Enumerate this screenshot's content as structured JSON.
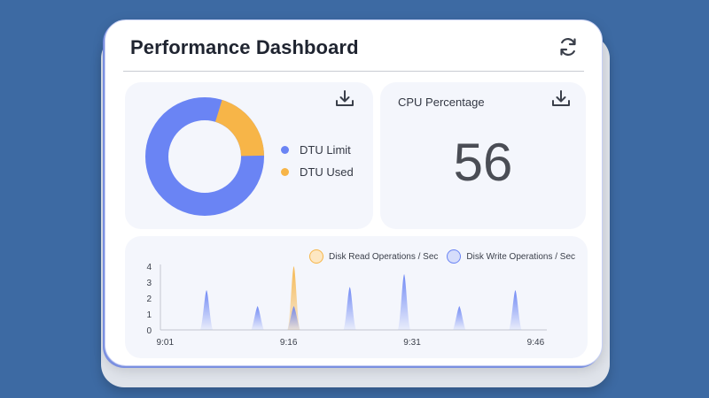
{
  "dashboard": {
    "title": "Performance Dashboard",
    "refresh_icon": "refresh-icon"
  },
  "dtu": {
    "legend": [
      {
        "label": "DTU Limit",
        "color": "#6a84f4"
      },
      {
        "label": "DTU Used",
        "color": "#f7b548"
      }
    ],
    "limit_fraction": 0.8,
    "used_fraction": 0.2,
    "download_icon": "download-icon"
  },
  "cpu": {
    "label": "CPU Percentage",
    "value": "56",
    "download_icon": "download-icon"
  },
  "chart_data": {
    "type": "area",
    "title": "",
    "xlabel": "",
    "ylabel": "",
    "ylim": [
      0,
      4
    ],
    "yticks": [
      "4",
      "3",
      "2",
      "1",
      "0"
    ],
    "xticks": [
      "9:01",
      "9:16",
      "9:31",
      "9:46"
    ],
    "series": [
      {
        "name": "Disk Read Operations / Sec",
        "color": "#f7b548",
        "peaks": [
          {
            "t": 16.2,
            "v": 4.0
          }
        ]
      },
      {
        "name": "Disk Write Operations / Sec",
        "color": "#6a84f4",
        "peaks": [
          {
            "t": 5.6,
            "v": 2.5
          },
          {
            "t": 11.8,
            "v": 1.5
          },
          {
            "t": 16.2,
            "v": 1.5
          },
          {
            "t": 23.0,
            "v": 2.7
          },
          {
            "t": 29.6,
            "v": 3.5
          },
          {
            "t": 36.3,
            "v": 1.5
          },
          {
            "t": 43.1,
            "v": 2.5
          }
        ]
      }
    ]
  }
}
